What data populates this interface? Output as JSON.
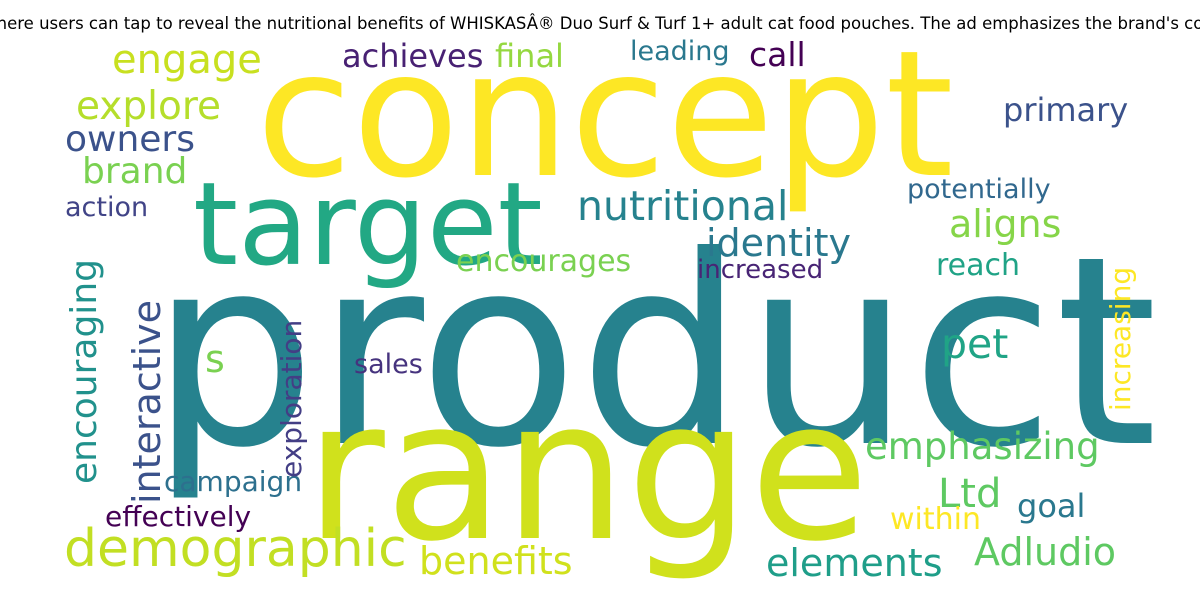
{
  "title": "here users can tap to reveal the nutritional benefits of WHISKASÂ® Duo Surf & Turf 1+ adult cat food pouches. The ad emphasizes the brand's co",
  "words": [
    {
      "text": "product",
      "color": "#26828e"
    },
    {
      "text": "concept",
      "color": "#fde725"
    },
    {
      "text": "range",
      "color": "#d0e11c"
    },
    {
      "text": "target",
      "color": "#22a884"
    },
    {
      "text": "demographic",
      "color": "#c2df23"
    },
    {
      "text": "nutritional",
      "color": "#26828e"
    },
    {
      "text": "identity",
      "color": "#2a788e"
    },
    {
      "text": "emphasizing",
      "color": "#5ec962"
    },
    {
      "text": "engage",
      "color": "#c8e020"
    },
    {
      "text": "explore",
      "color": "#b5de2b"
    },
    {
      "text": "owners",
      "color": "#3b528b"
    },
    {
      "text": "brand",
      "color": "#7ad151"
    },
    {
      "text": "action",
      "color": "#414487"
    },
    {
      "text": "achieves",
      "color": "#482173"
    },
    {
      "text": "final",
      "color": "#95d840"
    },
    {
      "text": "leading",
      "color": "#2a788e"
    },
    {
      "text": "call",
      "color": "#440154"
    },
    {
      "text": "primary",
      "color": "#3b528b"
    },
    {
      "text": "potentially",
      "color": "#31688e"
    },
    {
      "text": "aligns",
      "color": "#86d549"
    },
    {
      "text": "reach",
      "color": "#20a386"
    },
    {
      "text": "increased",
      "color": "#482475"
    },
    {
      "text": "encourages",
      "color": "#7ad151"
    },
    {
      "text": "pet",
      "color": "#20a486"
    },
    {
      "text": "s",
      "color": "#7ad151"
    },
    {
      "text": "sales",
      "color": "#46337e"
    },
    {
      "text": "Ltd",
      "color": "#5ec962"
    },
    {
      "text": "goal",
      "color": "#2a788e"
    },
    {
      "text": "within",
      "color": "#fde725"
    },
    {
      "text": "Adludio",
      "color": "#5ec962"
    },
    {
      "text": "elements",
      "color": "#1f9e89"
    },
    {
      "text": "benefits",
      "color": "#d0e11c"
    },
    {
      "text": "effectively",
      "color": "#440154"
    },
    {
      "text": "campaign",
      "color": "#2d708e"
    },
    {
      "text": "encouraging",
      "color": "#21918c"
    },
    {
      "text": "interactive",
      "color": "#3b528b"
    },
    {
      "text": "exploration",
      "color": "#433e85"
    },
    {
      "text": "increasing",
      "color": "#fde725"
    }
  ]
}
